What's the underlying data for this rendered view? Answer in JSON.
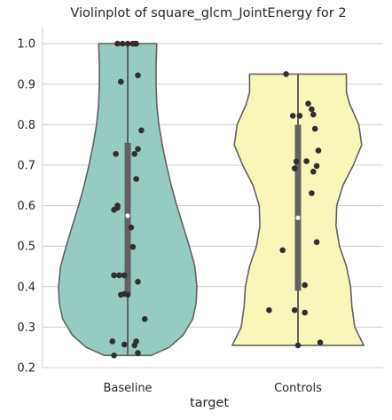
{
  "chart_data": {
    "type": "violin",
    "title": "Violinplot of square_glcm_JointEnergy for 2",
    "xlabel": "target",
    "ylabel": "",
    "categories": [
      "Baseline",
      "Controls"
    ],
    "ylim": [
      0.2,
      1.04
    ],
    "yticks": [
      0.2,
      0.3,
      0.4,
      0.5,
      0.6,
      0.7,
      0.8,
      0.9,
      1.0
    ],
    "ytick_labels": [
      "0.2",
      "0.3",
      "0.4",
      "0.5",
      "0.6",
      "0.7",
      "0.8",
      "0.9",
      "1.0"
    ],
    "grid": true,
    "colors": {
      "Baseline": "#96cbc1",
      "Controls": "#f8f7b9",
      "outline": "#616161",
      "box": "#616161",
      "points": "#2f2f2f",
      "grid": "#cccccc"
    },
    "violins": [
      {
        "category": "Baseline",
        "range": [
          0.23,
          1.0
        ],
        "quartiles": [
          0.38,
          0.755
        ],
        "median": 0.575,
        "profile": [
          [
            0.23,
            0.34
          ],
          [
            0.25,
            0.6
          ],
          [
            0.28,
            0.8
          ],
          [
            0.32,
            0.94
          ],
          [
            0.36,
            0.99
          ],
          [
            0.4,
            1.0
          ],
          [
            0.45,
            0.97
          ],
          [
            0.5,
            0.89
          ],
          [
            0.55,
            0.8
          ],
          [
            0.6,
            0.71
          ],
          [
            0.65,
            0.63
          ],
          [
            0.7,
            0.56
          ],
          [
            0.75,
            0.5
          ],
          [
            0.8,
            0.45
          ],
          [
            0.85,
            0.42
          ],
          [
            0.9,
            0.41
          ],
          [
            0.95,
            0.41
          ],
          [
            1.0,
            0.42
          ]
        ],
        "points": [
          [
            -0.06,
            1.0
          ],
          [
            -0.03,
            1.0
          ],
          [
            0.0,
            1.0
          ],
          [
            0.03,
            1.0
          ],
          [
            0.04,
            1.0
          ],
          [
            0.05,
            1.0
          ],
          [
            0.06,
            0.922
          ],
          [
            -0.04,
            0.906
          ],
          [
            0.08,
            0.786
          ],
          [
            0.06,
            0.74
          ],
          [
            -0.07,
            0.728
          ],
          [
            0.04,
            0.728
          ],
          [
            0.05,
            0.666
          ],
          [
            -0.06,
            0.6
          ],
          [
            -0.08,
            0.59
          ],
          [
            -0.06,
            0.595
          ],
          [
            0.02,
            0.546
          ],
          [
            0.03,
            0.498
          ],
          [
            -0.08,
            0.428
          ],
          [
            -0.05,
            0.428
          ],
          [
            -0.02,
            0.428
          ],
          [
            0.06,
            0.412
          ],
          [
            -0.04,
            0.38
          ],
          [
            -0.02,
            0.382
          ],
          [
            0.0,
            0.38
          ],
          [
            0.1,
            0.32
          ],
          [
            -0.09,
            0.265
          ],
          [
            0.05,
            0.265
          ],
          [
            -0.02,
            0.257
          ],
          [
            0.04,
            0.255
          ],
          [
            0.06,
            0.236
          ],
          [
            -0.08,
            0.23
          ]
        ]
      },
      {
        "category": "Controls",
        "range": [
          0.255,
          0.925
        ],
        "quartiles": [
          0.39,
          0.8
        ],
        "median": 0.57,
        "profile": [
          [
            0.255,
            0.95
          ],
          [
            0.3,
            0.82
          ],
          [
            0.35,
            0.78
          ],
          [
            0.4,
            0.76
          ],
          [
            0.45,
            0.7
          ],
          [
            0.5,
            0.6
          ],
          [
            0.55,
            0.55
          ],
          [
            0.6,
            0.56
          ],
          [
            0.65,
            0.65
          ],
          [
            0.7,
            0.8
          ],
          [
            0.75,
            0.92
          ],
          [
            0.8,
            0.88
          ],
          [
            0.85,
            0.75
          ],
          [
            0.88,
            0.7
          ],
          [
            0.925,
            0.7
          ]
        ],
        "points": [
          [
            -0.07,
            0.925
          ],
          [
            0.06,
            0.852
          ],
          [
            0.08,
            0.838
          ],
          [
            0.09,
            0.825
          ],
          [
            -0.03,
            0.822
          ],
          [
            0.01,
            0.822
          ],
          [
            0.1,
            0.79
          ],
          [
            0.12,
            0.736
          ],
          [
            -0.01,
            0.709
          ],
          [
            0.05,
            0.71
          ],
          [
            0.11,
            0.698
          ],
          [
            -0.02,
            0.692
          ],
          [
            0.09,
            0.684
          ],
          [
            0.08,
            0.631
          ],
          [
            0.11,
            0.51
          ],
          [
            -0.09,
            0.49
          ],
          [
            0.04,
            0.404
          ],
          [
            -0.02,
            0.342
          ],
          [
            -0.17,
            0.342
          ],
          [
            0.04,
            0.336
          ],
          [
            0.0,
            0.255
          ],
          [
            0.13,
            0.262
          ]
        ]
      }
    ]
  }
}
